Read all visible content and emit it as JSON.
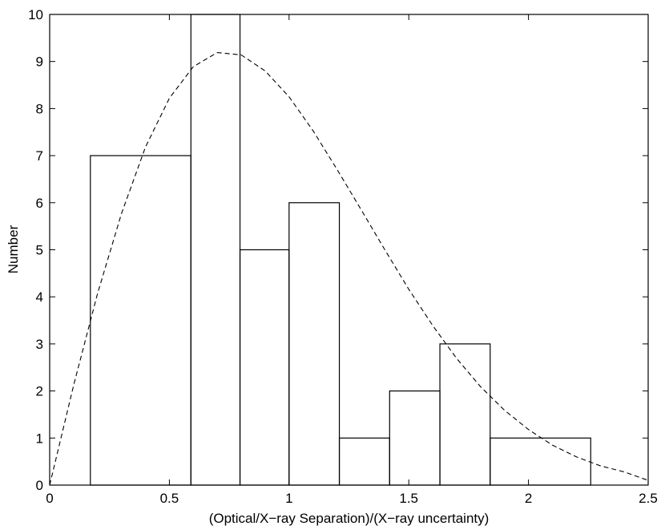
{
  "chart_data": {
    "type": "bar",
    "title": "",
    "xlabel": "(Optical/X−ray Separation)/(X−ray uncertainty)",
    "ylabel": "Number",
    "xlim": [
      0,
      2.5
    ],
    "ylim": [
      0,
      10
    ],
    "x_ticks": [
      0,
      0.5,
      1,
      1.5,
      2,
      2.5
    ],
    "x_tick_labels": [
      "0",
      "0.5",
      "1",
      "1.5",
      "2",
      "2.5"
    ],
    "y_ticks": [
      0,
      1,
      2,
      3,
      4,
      5,
      6,
      7,
      8,
      9,
      10
    ],
    "y_tick_labels": [
      "0",
      "1",
      "2",
      "3",
      "4",
      "5",
      "6",
      "7",
      "8",
      "9",
      "10"
    ],
    "grid": false,
    "legend": "none",
    "histogram": {
      "style": "step",
      "bin_edges": [
        0.17,
        0.59,
        0.795,
        1.0,
        1.21,
        1.42,
        1.63,
        1.84,
        2.26
      ],
      "counts": [
        7,
        10,
        5,
        6,
        1,
        2,
        3,
        1
      ]
    },
    "curve": {
      "style": "dashed",
      "description_type": "fitted distribution",
      "x": [
        0,
        0.1,
        0.2,
        0.3,
        0.4,
        0.5,
        0.6,
        0.7,
        0.8,
        0.9,
        1.0,
        1.1,
        1.2,
        1.3,
        1.4,
        1.5,
        1.6,
        1.7,
        1.8,
        1.9,
        2.0,
        2.1,
        2.2,
        2.3,
        2.4,
        2.5
      ],
      "y": [
        0,
        2.12,
        4.07,
        5.77,
        7.18,
        8.22,
        8.89,
        9.19,
        9.14,
        8.8,
        8.25,
        7.53,
        6.71,
        5.86,
        5.0,
        4.16,
        3.39,
        2.69,
        2.09,
        1.59,
        1.18,
        0.85,
        0.6,
        0.41,
        0.28,
        0.1
      ]
    },
    "colors": {
      "histogram": "#000000",
      "curve": "#000000",
      "axes": "#000000"
    }
  }
}
